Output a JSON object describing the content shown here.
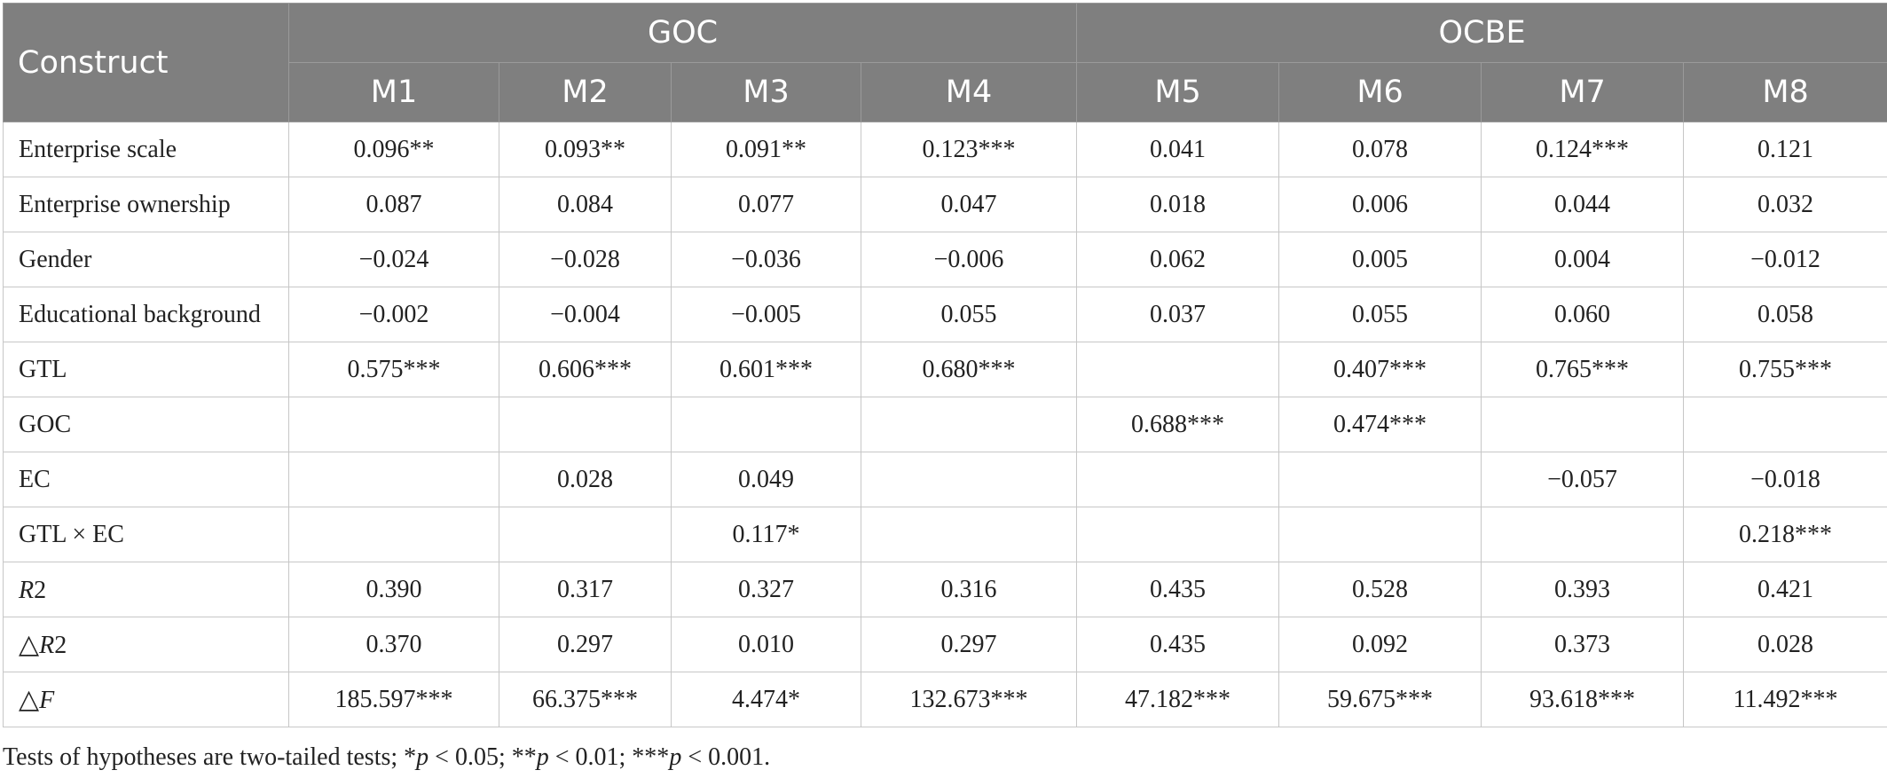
{
  "table": {
    "construct_header": "Construct",
    "groups": [
      {
        "label": "GOC",
        "span": 4
      },
      {
        "label": "OCBE",
        "span": 4
      }
    ],
    "models": [
      "M1",
      "M2",
      "M3",
      "M4",
      "M5",
      "M6",
      "M7",
      "M8"
    ],
    "rows": [
      {
        "label": "Enterprise scale",
        "cells": [
          "0.096**",
          "0.093**",
          "0.091**",
          "0.123***",
          "0.041",
          "0.078",
          "0.124***",
          "0.121"
        ]
      },
      {
        "label": "Enterprise ownership",
        "cells": [
          "0.087",
          "0.084",
          "0.077",
          "0.047",
          "0.018",
          "0.006",
          "0.044",
          "0.032"
        ]
      },
      {
        "label": "Gender",
        "cells": [
          "−0.024",
          "−0.028",
          "−0.036",
          "−0.006",
          "0.062",
          "0.005",
          "0.004",
          "−0.012"
        ]
      },
      {
        "label": "Educational background",
        "cells": [
          "−0.002",
          "−0.004",
          "−0.005",
          "0.055",
          "0.037",
          "0.055",
          "0.060",
          "0.058"
        ]
      },
      {
        "label": "GTL",
        "cells": [
          "0.575***",
          "0.606***",
          "0.601***",
          "0.680***",
          "",
          "0.407***",
          "0.765***",
          "0.755***"
        ]
      },
      {
        "label": "GOC",
        "cells": [
          "",
          "",
          "",
          "",
          "0.688***",
          "0.474***",
          "",
          ""
        ]
      },
      {
        "label": "EC",
        "cells": [
          "",
          "0.028",
          "0.049",
          "",
          "",
          "",
          "−0.057",
          "−0.018"
        ]
      },
      {
        "label": "GTL × EC",
        "cells": [
          "",
          "",
          "0.117*",
          "",
          "",
          "",
          "",
          "0.218***"
        ]
      },
      {
        "label": "R2",
        "prefix": "",
        "var": "R",
        "suffix": "2",
        "cells": [
          "0.390",
          "0.317",
          "0.327",
          "0.316",
          "0.435",
          "0.528",
          "0.393",
          "0.421"
        ]
      },
      {
        "label": "△R2",
        "prefix": "△",
        "var": "R",
        "suffix": "2",
        "cells": [
          "0.370",
          "0.297",
          "0.010",
          "0.297",
          "0.435",
          "0.092",
          "0.373",
          "0.028"
        ]
      },
      {
        "label": "△F",
        "prefix": "△",
        "var": "F",
        "suffix": "",
        "cells": [
          "185.597***",
          "66.375***",
          "4.474*",
          "132.673***",
          "47.182***",
          "59.675***",
          "93.618***",
          "11.492***"
        ]
      }
    ]
  },
  "note": {
    "lead": "Tests of hypotheses are two-tailed tests; *",
    "p": "p",
    "t1": " < 0.05; **",
    "t2": " < 0.01; ***",
    "t3": " < 0.001."
  }
}
